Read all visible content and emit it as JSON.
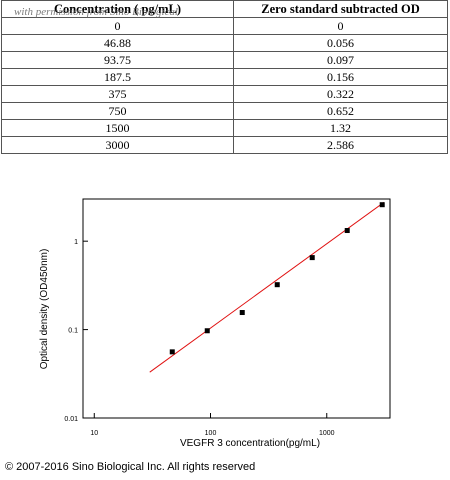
{
  "watermark": "with permission from Sino Biological",
  "table": {
    "columns": [
      "Concentration ( pg/mL)",
      "Zero standard subtracted OD"
    ],
    "rows": [
      [
        "0",
        "0"
      ],
      [
        "46.88",
        "0.056"
      ],
      [
        "93.75",
        "0.097"
      ],
      [
        "187.5",
        "0.156"
      ],
      [
        "375",
        "0.322"
      ],
      [
        "750",
        "0.652"
      ],
      [
        "1500",
        "1.32"
      ],
      [
        "3000",
        "2.586"
      ]
    ]
  },
  "chart_data": {
    "type": "scatter",
    "xlabel": "VEGFR 3 concentration(pg/mL)",
    "ylabel": "Optical density (OD450nm)",
    "x": [
      46.88,
      93.75,
      187.5,
      375,
      750,
      1500,
      3000
    ],
    "values": [
      0.056,
      0.097,
      0.156,
      0.322,
      0.652,
      1.32,
      2.586
    ],
    "color": "#000000",
    "fit_line": {
      "x": [
        30,
        3100
      ],
      "values": [
        0.033,
        2.75
      ],
      "color": "#e01010"
    },
    "xlim": [
      8,
      3500
    ],
    "ylim": [
      0.01,
      3
    ],
    "xticks": [
      10,
      100,
      1000
    ],
    "yticks": [
      0.01,
      0.1,
      1
    ],
    "xscale": "log",
    "yscale": "log"
  },
  "copyright": "© 2007-2016 Sino Biological Inc. All rights reserved"
}
